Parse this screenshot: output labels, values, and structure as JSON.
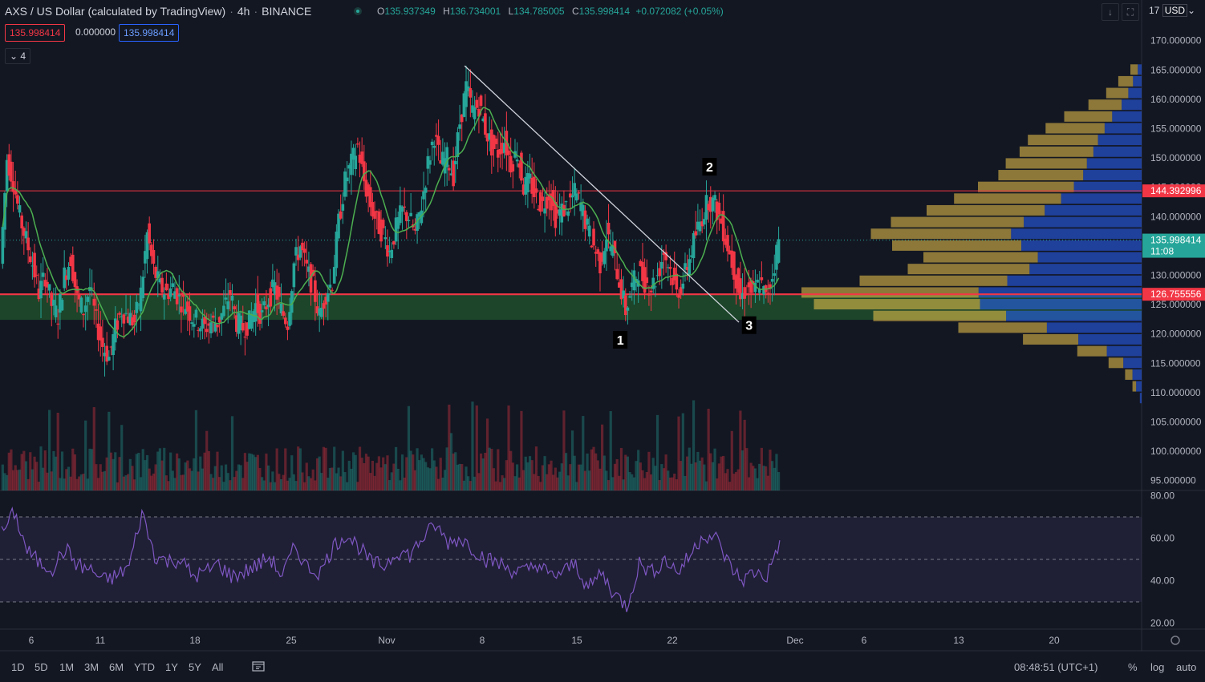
{
  "header": {
    "symbol": "AXS / US Dollar (calculated by TradingView)",
    "interval": "4h",
    "exchange": "BINANCE",
    "ohlc": {
      "o_label": "O",
      "o": "135.937349",
      "h_label": "H",
      "h": "136.734001",
      "l_label": "L",
      "l": "134.785005",
      "c_label": "C",
      "c": "135.998414",
      "change": "+0.072082 (+0.05%)"
    },
    "sell_price": "135.998414",
    "spread": "0.000000",
    "buy_price": "135.998414",
    "indicator_count": "4",
    "currency": "USD",
    "corner_label": "17"
  },
  "colors": {
    "background": "#131722",
    "up": "#26a69a",
    "down": "#f23645",
    "ma": "#4caf50",
    "rsi": "#7e57c2",
    "zone": "#1e4d2b",
    "resistance": "#f23645",
    "vp_up": "#f2c94c",
    "vp_down": "#2962ff"
  },
  "bottom": {
    "timeframes": [
      "1D",
      "5D",
      "1M",
      "3M",
      "6M",
      "YTD",
      "1Y",
      "5Y",
      "All"
    ],
    "clock": "08:48:51 (UTC+1)",
    "percent": "%",
    "log": "log",
    "auto": "auto"
  },
  "chart_data": {
    "type": "candlestick",
    "y_axis": {
      "ylim": [
        94,
        175
      ],
      "ticks": [
        "95.000000",
        "100.000000",
        "105.000000",
        "110.000000",
        "115.000000",
        "120.000000",
        "125.000000",
        "130.000000",
        "135.000000",
        "140.000000",
        "145.000000",
        "150.000000",
        "155.000000",
        "160.000000",
        "165.000000",
        "170.000000"
      ]
    },
    "x_axis": {
      "ticks": [
        "6",
        "11",
        "18",
        "25",
        "Nov",
        "8",
        "15",
        "22",
        "Dec",
        "6",
        "13",
        "20"
      ]
    },
    "price_labels": {
      "resistance": "144.392996",
      "current": "135.998414",
      "countdown": "11:08",
      "support": "126.755556"
    },
    "levels": {
      "resistance": 144.39,
      "support": 126.76,
      "current": 136.0,
      "zone": [
        122.4,
        126.8
      ]
    },
    "annotations": [
      {
        "label": "1",
        "day": 48.5,
        "price": 119.0
      },
      {
        "label": "2",
        "day": 55.5,
        "price": 148.5
      },
      {
        "label": "3",
        "day": 58.6,
        "price": 121.5
      }
    ],
    "trendline": [
      {
        "day": 36.3,
        "price": 165.7
      },
      {
        "day": 57.8,
        "price": 122.0
      }
    ],
    "path": [
      [
        0,
        132
      ],
      [
        0.5,
        150
      ],
      [
        1,
        146
      ],
      [
        1.5,
        140
      ],
      [
        2,
        136
      ],
      [
        2.5,
        132
      ],
      [
        3,
        127
      ],
      [
        3.5,
        130
      ],
      [
        4,
        125
      ],
      [
        4.5,
        123
      ],
      [
        5,
        130
      ],
      [
        5.5,
        133
      ],
      [
        6,
        126
      ],
      [
        6.5,
        124
      ],
      [
        7,
        128
      ],
      [
        7.5,
        122
      ],
      [
        8,
        118
      ],
      [
        8.5,
        116
      ],
      [
        9,
        121
      ],
      [
        9.5,
        124
      ],
      [
        10,
        123
      ],
      [
        10.5,
        122
      ],
      [
        11,
        127
      ],
      [
        11.5,
        137
      ],
      [
        12,
        131
      ],
      [
        12.5,
        128
      ],
      [
        13,
        127
      ],
      [
        13.5,
        128
      ],
      [
        14,
        126
      ],
      [
        14.5,
        125
      ],
      [
        15,
        123
      ],
      [
        15.5,
        122
      ],
      [
        16,
        121
      ],
      [
        16.5,
        122
      ],
      [
        17,
        122
      ],
      [
        17.5,
        124
      ],
      [
        18,
        127
      ],
      [
        18.5,
        122
      ],
      [
        19,
        121
      ],
      [
        19.5,
        122
      ],
      [
        20,
        125
      ],
      [
        20.5,
        123
      ],
      [
        21,
        126
      ],
      [
        21.5,
        128
      ],
      [
        22,
        124
      ],
      [
        22.5,
        122
      ],
      [
        23,
        132
      ],
      [
        23.5,
        135
      ],
      [
        24,
        131
      ],
      [
        24.5,
        128
      ],
      [
        25,
        123
      ],
      [
        25.5,
        127
      ],
      [
        26,
        129
      ],
      [
        26.5,
        139
      ],
      [
        27,
        146
      ],
      [
        27.5,
        149
      ],
      [
        28,
        152
      ],
      [
        28.5,
        146
      ],
      [
        29,
        142
      ],
      [
        29.5,
        139
      ],
      [
        30,
        137
      ],
      [
        30.5,
        134
      ],
      [
        31,
        138
      ],
      [
        31.5,
        141
      ],
      [
        32,
        140
      ],
      [
        32.5,
        137
      ],
      [
        33,
        142
      ],
      [
        33.5,
        149
      ],
      [
        34,
        154
      ],
      [
        34.5,
        149
      ],
      [
        35,
        150
      ],
      [
        35.5,
        147
      ],
      [
        36,
        156
      ],
      [
        36.5,
        162
      ],
      [
        37,
        158
      ],
      [
        37.5,
        159
      ],
      [
        38,
        155
      ],
      [
        38.5,
        152
      ],
      [
        39,
        151
      ],
      [
        39.5,
        153
      ],
      [
        40,
        149
      ],
      [
        40.5,
        151
      ],
      [
        41,
        145
      ],
      [
        41.5,
        146
      ],
      [
        42,
        143
      ],
      [
        42.5,
        142
      ],
      [
        43,
        144
      ],
      [
        43.5,
        140
      ],
      [
        44,
        141
      ],
      [
        44.5,
        142
      ],
      [
        45,
        144
      ],
      [
        45.5,
        142
      ],
      [
        46,
        138
      ],
      [
        46.5,
        135
      ],
      [
        47,
        132
      ],
      [
        47.5,
        137
      ],
      [
        48,
        134
      ],
      [
        48.5,
        129
      ],
      [
        49,
        124
      ],
      [
        49.5,
        128
      ],
      [
        50,
        131
      ],
      [
        50.5,
        129
      ],
      [
        51,
        128
      ],
      [
        51.5,
        130
      ],
      [
        52,
        134
      ],
      [
        52.5,
        131
      ],
      [
        53,
        127
      ],
      [
        53.5,
        129
      ],
      [
        54,
        133
      ],
      [
        54.5,
        137
      ],
      [
        55,
        140
      ],
      [
        55.5,
        143
      ],
      [
        56,
        142
      ],
      [
        56.5,
        139
      ],
      [
        57,
        135
      ],
      [
        57.5,
        131
      ],
      [
        58,
        126
      ],
      [
        58.5,
        128
      ],
      [
        59,
        127
      ],
      [
        59.5,
        129
      ],
      [
        60,
        126
      ],
      [
        60.5,
        130
      ],
      [
        61,
        136
      ]
    ],
    "volume_profile": {
      "levels": [
        [
          165,
          4,
          0
        ],
        [
          163,
          8,
          2
        ],
        [
          161,
          12,
          4
        ],
        [
          159,
          18,
          6
        ],
        [
          157,
          26,
          10
        ],
        [
          155,
          32,
          14
        ],
        [
          153,
          38,
          16
        ],
        [
          151,
          40,
          22
        ],
        [
          149,
          44,
          28
        ],
        [
          147,
          46,
          32
        ],
        [
          145,
          52,
          40
        ],
        [
          143,
          58,
          56
        ],
        [
          141,
          64,
          80
        ],
        [
          139,
          72,
          110
        ],
        [
          137,
          76,
          130
        ],
        [
          135,
          70,
          120
        ],
        [
          133,
          62,
          100
        ],
        [
          131,
          66,
          110
        ],
        [
          129,
          80,
          130
        ],
        [
          127,
          96,
          160
        ],
        [
          125,
          90,
          170
        ],
        [
          123,
          72,
          150
        ],
        [
          121,
          48,
          110
        ],
        [
          119,
          30,
          78
        ],
        [
          117,
          16,
          44
        ],
        [
          115,
          8,
          24
        ],
        [
          113,
          4,
          12
        ],
        [
          111,
          2,
          8
        ],
        [
          109,
          0,
          4
        ]
      ]
    },
    "rsi": {
      "ylim": [
        18,
        82
      ],
      "ticks": [
        "80.00",
        "60.00",
        "40.00",
        "20.00"
      ],
      "bands": [
        70,
        50,
        30
      ],
      "values": [
        [
          0,
          62
        ],
        [
          1,
          72
        ],
        [
          2,
          54
        ],
        [
          3,
          48
        ],
        [
          4,
          46
        ],
        [
          5,
          55
        ],
        [
          6,
          47
        ],
        [
          7,
          45
        ],
        [
          8,
          40
        ],
        [
          9,
          42
        ],
        [
          10,
          47
        ],
        [
          11,
          72
        ],
        [
          12,
          52
        ],
        [
          13,
          49
        ],
        [
          14,
          50
        ],
        [
          15,
          42
        ],
        [
          16,
          44
        ],
        [
          17,
          48
        ],
        [
          18,
          42
        ],
        [
          19,
          44
        ],
        [
          20,
          47
        ],
        [
          21,
          51
        ],
        [
          22,
          42
        ],
        [
          23,
          56
        ],
        [
          24,
          46
        ],
        [
          25,
          44
        ],
        [
          26,
          56
        ],
        [
          27,
          62
        ],
        [
          28,
          56
        ],
        [
          29,
          48
        ],
        [
          30,
          47
        ],
        [
          31,
          54
        ],
        [
          32,
          52
        ],
        [
          33,
          60
        ],
        [
          34,
          66
        ],
        [
          35,
          58
        ],
        [
          36,
          60
        ],
        [
          37,
          55
        ],
        [
          38,
          50
        ],
        [
          39,
          48
        ],
        [
          40,
          45
        ],
        [
          41,
          44
        ],
        [
          42,
          48
        ],
        [
          43,
          42
        ],
        [
          44,
          44
        ],
        [
          45,
          48
        ],
        [
          46,
          36
        ],
        [
          47,
          44
        ],
        [
          48,
          34
        ],
        [
          49,
          28
        ],
        [
          50,
          48
        ],
        [
          51,
          44
        ],
        [
          52,
          50
        ],
        [
          53,
          44
        ],
        [
          54,
          52
        ],
        [
          55,
          62
        ],
        [
          56,
          60
        ],
        [
          57,
          48
        ],
        [
          58,
          40
        ],
        [
          59,
          44
        ],
        [
          60,
          42
        ],
        [
          61,
          59
        ]
      ]
    }
  }
}
